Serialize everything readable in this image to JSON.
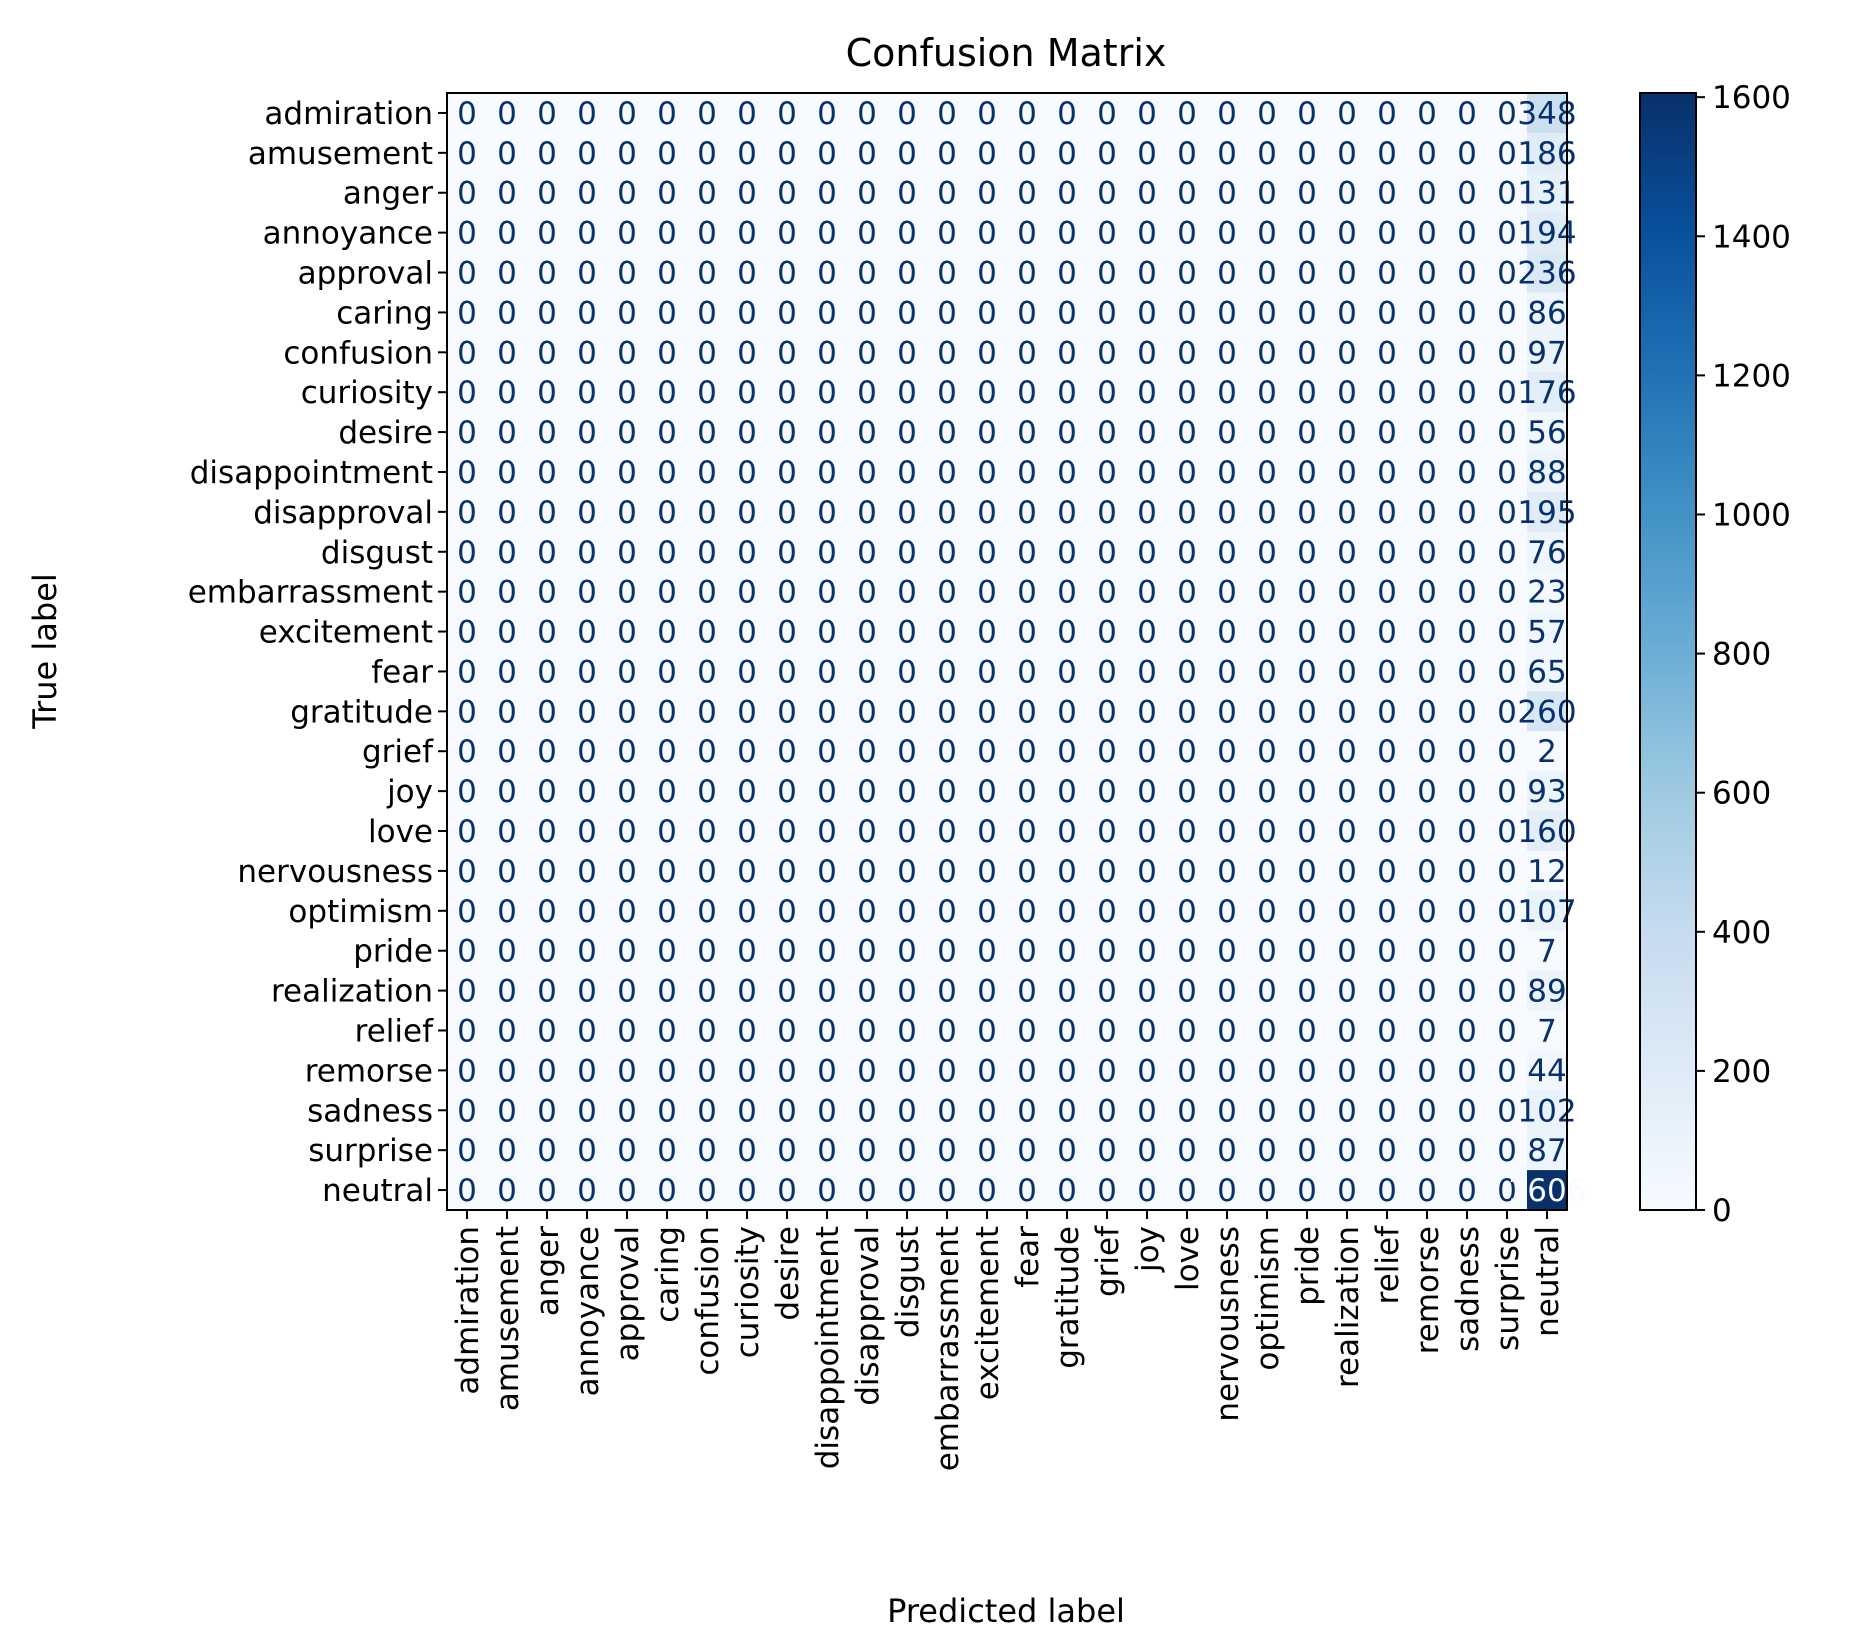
{
  "chart_data": {
    "type": "heatmap",
    "title": "Confusion Matrix",
    "xlabel": "Predicted label",
    "ylabel": "True label",
    "labels": [
      "admiration",
      "amusement",
      "anger",
      "annoyance",
      "approval",
      "caring",
      "confusion",
      "curiosity",
      "desire",
      "disappointment",
      "disapproval",
      "disgust",
      "embarrassment",
      "excitement",
      "fear",
      "gratitude",
      "grief",
      "joy",
      "love",
      "nervousness",
      "optimism",
      "pride",
      "realization",
      "relief",
      "remorse",
      "sadness",
      "surprise",
      "neutral"
    ],
    "predicted_counts_all_in_last_column": [
      348,
      186,
      131,
      194,
      236,
      86,
      97,
      176,
      56,
      88,
      195,
      76,
      23,
      57,
      65,
      260,
      2,
      93,
      160,
      12,
      107,
      7,
      89,
      7,
      44,
      102,
      87,
      1606
    ],
    "other_cells_value": 0,
    "colormap": "Blues",
    "color_range": [
      0,
      1606
    ],
    "colorbar_ticks": [
      0,
      200,
      400,
      600,
      800,
      1000,
      1200,
      1400,
      1600
    ],
    "low_color": "#f7fbff",
    "high_color": "#08306b",
    "light_text_color": "#f7fbff",
    "grid": false
  }
}
